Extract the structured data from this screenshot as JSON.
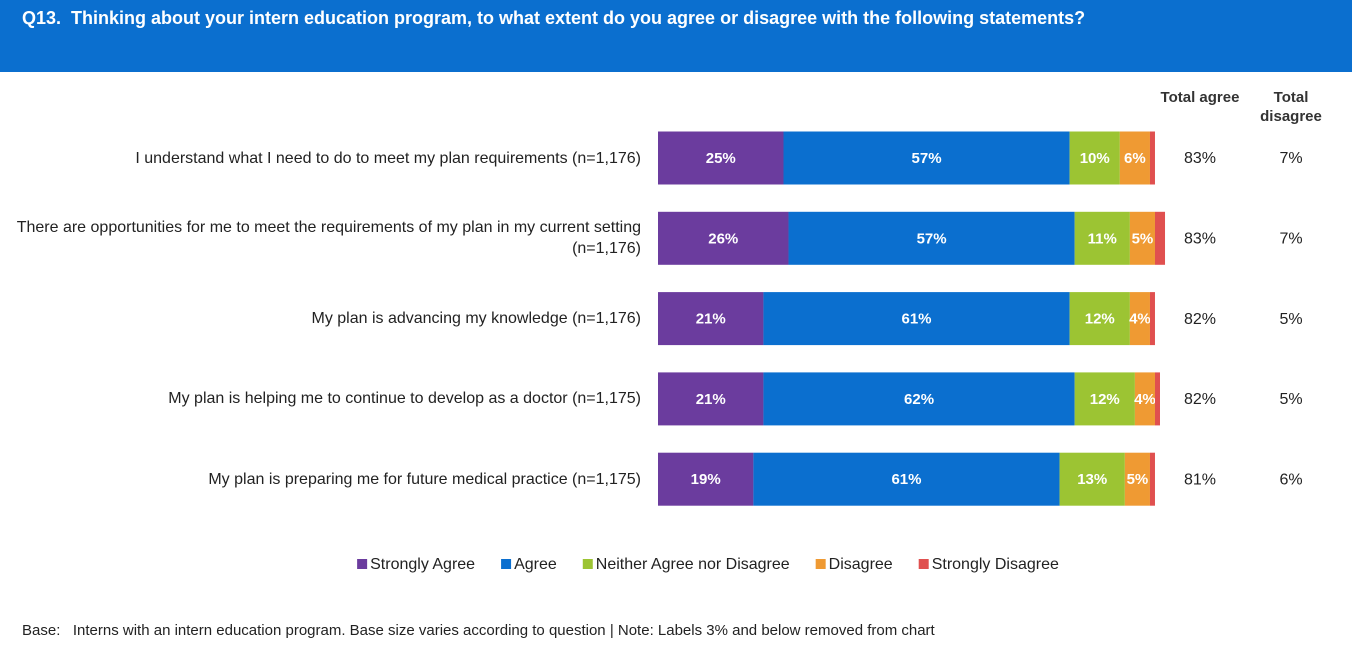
{
  "chart_data": {
    "type": "bar",
    "orientation": "horizontal",
    "stacked": true,
    "title": "Q13.  Thinking about your intern education program, to what extent do you agree or disagree with the following statements?",
    "categories": [
      "I understand what I need to do to meet my plan requirements (n=1,176)",
      "There are opportunities for me to meet the requirements of my plan in my current setting (n=1,176)",
      "My plan is advancing my knowledge (n=1,176)",
      "My plan is helping me to continue to develop as a doctor (n=1,175)",
      "My plan is preparing me for future medical practice (n=1,175)"
    ],
    "xlim": [
      0,
      100
    ],
    "series": [
      {
        "name": "Strongly Agree",
        "color": "#6b3c9e",
        "values": [
          25,
          26,
          21,
          21,
          19
        ],
        "value_labels": [
          "25%",
          "26%",
          "21%",
          "21%",
          "19%"
        ]
      },
      {
        "name": "Agree",
        "color": "#0b6fcf",
        "values": [
          57,
          57,
          61,
          62,
          61
        ],
        "value_labels": [
          "57%",
          "57%",
          "61%",
          "62%",
          "61%"
        ]
      },
      {
        "name": "Neither Agree nor Disagree",
        "color": "#9cc433",
        "values": [
          10,
          11,
          12,
          12,
          13
        ],
        "value_labels": [
          "10%",
          "11%",
          "12%",
          "12%",
          "13%"
        ]
      },
      {
        "name": "Disagree",
        "color": "#ef9a33",
        "values": [
          6,
          5,
          4,
          4,
          5
        ],
        "value_labels": [
          "6%",
          "5%",
          "4%",
          "4%",
          "5%"
        ]
      },
      {
        "name": "Strongly Disagree",
        "color": "#e0504f",
        "values": [
          1,
          2,
          1,
          1,
          1
        ],
        "value_labels": [
          null,
          null,
          null,
          null,
          null
        ]
      }
    ],
    "totals": [
      {
        "name": "Total agree",
        "labels": [
          "83%",
          "83%",
          "82%",
          "82%",
          "81%"
        ]
      },
      {
        "name": "Total disagree",
        "labels": [
          "7%",
          "7%",
          "5%",
          "5%",
          "6%"
        ]
      }
    ],
    "note": "Base:   Interns with an intern education program. Base size varies according to question | Note: Labels 3% and below removed from chart"
  }
}
